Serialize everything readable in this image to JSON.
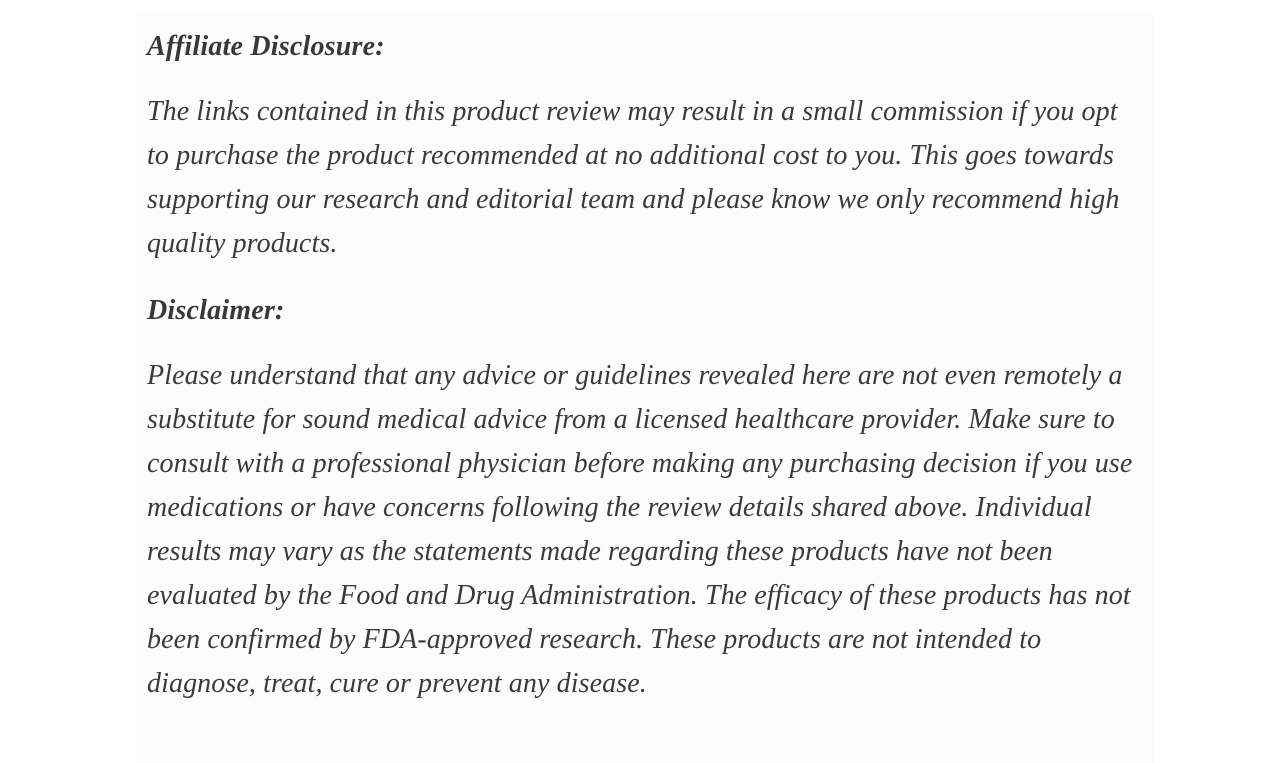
{
  "article": {
    "text_color": "#3a3a3a",
    "background_color": "#ffffff",
    "sections": [
      {
        "heading": "Affiliate Disclosure:",
        "body": "The links contained in this product review may result in a small commission if you opt to purchase the product recommended at no additional cost to you. This goes towards supporting our research and editorial team and please know we only recommend high quality products."
      },
      {
        "heading": "Disclaimer:",
        "body": "Please understand that any advice or guidelines revealed here are not even remotely a substitute for sound medical advice from a licensed healthcare provider. Make sure to consult with a professional physician before making any purchasing decision if you use medications or have concerns following the review details shared above. Individual results may vary as the statements made regarding these products have not been evaluated by the Food and Drug Administration. The efficacy of these products has not been confirmed by FDA-approved research. These products are not intended to diagnose, treat, cure or prevent any disease."
      }
    ]
  }
}
